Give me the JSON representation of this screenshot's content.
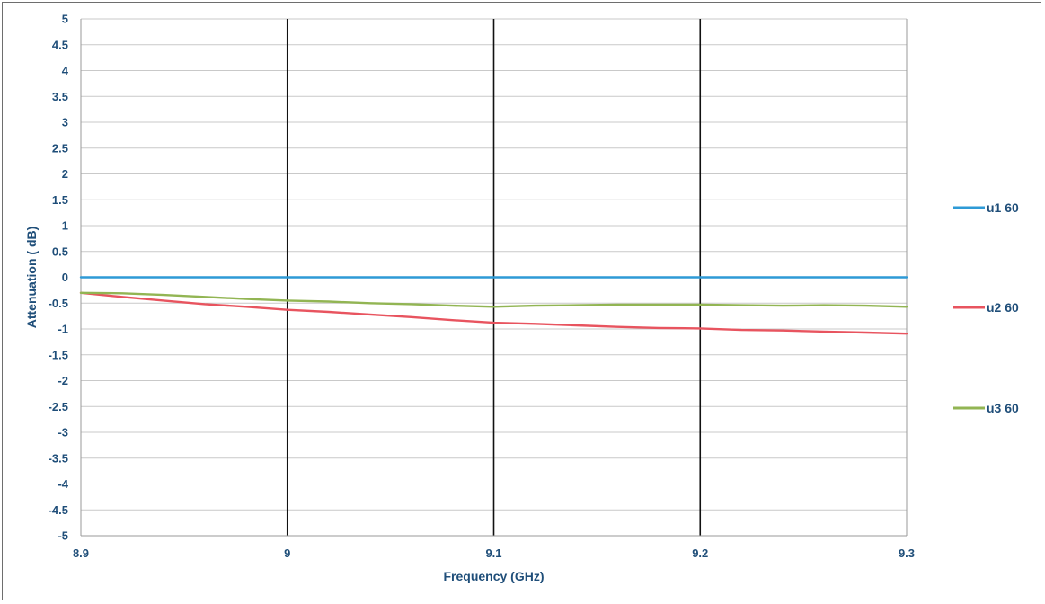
{
  "chart_data": {
    "type": "line",
    "xlabel": "Frequency (GHz)",
    "ylabel": "Attenuation ( dB)",
    "xlim": [
      8.9,
      9.3
    ],
    "ylim": [
      -5,
      5
    ],
    "x_ticks": [
      "8.9",
      "9",
      "9.1",
      "9.2",
      "9.3"
    ],
    "y_ticks": [
      "5",
      "4.5",
      "4",
      "3.5",
      "3",
      "2.5",
      "2",
      "1.5",
      "1",
      "0.5",
      "0",
      "-0.5",
      "-1",
      "-1.5",
      "-2",
      "-2.5",
      "-3",
      "-3.5",
      "-4",
      "-4.5",
      "-5"
    ],
    "grid": true,
    "legend_position": "right",
    "series": [
      {
        "name": "u1 60",
        "color": "#2e9ad6",
        "x": [
          8.9,
          9.3
        ],
        "y": [
          0,
          0
        ]
      },
      {
        "name": "u2 60",
        "color": "#e8545f",
        "x": [
          8.9,
          8.92,
          8.94,
          8.96,
          8.98,
          9.0,
          9.02,
          9.04,
          9.06,
          9.08,
          9.1,
          9.12,
          9.14,
          9.16,
          9.18,
          9.2,
          9.22,
          9.24,
          9.26,
          9.28,
          9.3
        ],
        "y": [
          -0.3,
          -0.38,
          -0.45,
          -0.52,
          -0.57,
          -0.63,
          -0.67,
          -0.72,
          -0.77,
          -0.83,
          -0.88,
          -0.9,
          -0.93,
          -0.96,
          -0.98,
          -0.99,
          -1.02,
          -1.03,
          -1.05,
          -1.07,
          -1.09
        ]
      },
      {
        "name": "u3 60",
        "color": "#92b553",
        "x": [
          8.9,
          8.92,
          8.94,
          8.96,
          8.98,
          9.0,
          9.02,
          9.04,
          9.06,
          9.08,
          9.1,
          9.12,
          9.14,
          9.16,
          9.18,
          9.2,
          9.22,
          9.24,
          9.26,
          9.28,
          9.3
        ],
        "y": [
          -0.3,
          -0.31,
          -0.34,
          -0.38,
          -0.42,
          -0.45,
          -0.47,
          -0.5,
          -0.52,
          -0.55,
          -0.57,
          -0.55,
          -0.54,
          -0.53,
          -0.53,
          -0.53,
          -0.54,
          -0.55,
          -0.54,
          -0.55,
          -0.57
        ]
      }
    ]
  }
}
